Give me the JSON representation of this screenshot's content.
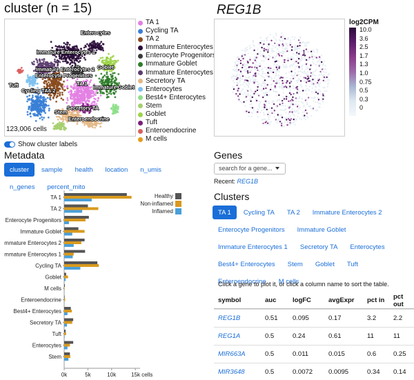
{
  "header": {
    "title": "cluster (n = 15)",
    "gene_title": "REG1B"
  },
  "umap": {
    "cell_count": "123,006 cells",
    "labels": [
      "Enterocytes",
      "Immature Enterocytes 1",
      "Immature Enterocytes 2",
      "Enterocyte Progenitors",
      "Goblet",
      "TA 1",
      "TA 2",
      "Tuft",
      "Cycling TA",
      "Immature Goblet",
      "Stem",
      "Secretory TA",
      "Enteroendocrine"
    ]
  },
  "legend": {
    "items": [
      {
        "label": "TA 1",
        "color": "#e37fe3"
      },
      {
        "label": "Cycling TA",
        "color": "#3a7fd6"
      },
      {
        "label": "TA 2",
        "color": "#8a4b1e"
      },
      {
        "label": "Immature Enterocytes 2",
        "color": "#2b0d3a"
      },
      {
        "label": "Enterocyte Progenitors",
        "color": "#3a3a3a"
      },
      {
        "label": "Immature Goblet",
        "color": "#2f7d2a"
      },
      {
        "label": "Immature Enterocytes 1",
        "color": "#5b3c6e"
      },
      {
        "label": "Secretory TA",
        "color": "#e3b886"
      },
      {
        "label": "Enterocytes",
        "color": "#7ec1ef"
      },
      {
        "label": "Best4+ Enterocytes",
        "color": "#8fe08a"
      },
      {
        "label": "Stem",
        "color": "#a6cf6f"
      },
      {
        "label": "Goblet",
        "color": "#9dd44a"
      },
      {
        "label": "Tuft",
        "color": "#7a1f7a"
      },
      {
        "label": "Enteroendocrine",
        "color": "#d95f5f"
      },
      {
        "label": "M cells",
        "color": "#e69b1a"
      }
    ]
  },
  "colorbar": {
    "title": "log2CPM",
    "ticks": [
      "10.0",
      "3.6",
      "2.5",
      "1.7",
      "1.3",
      "1.0",
      "0.75",
      "0.5",
      "0.3",
      "0"
    ]
  },
  "toggle": {
    "label": "Show cluster labels"
  },
  "metadata": {
    "title": "Metadata",
    "tabs": [
      "cluster",
      "sample",
      "health",
      "location",
      "n_umis",
      "n_genes",
      "percent_mito"
    ],
    "active_tab": "cluster"
  },
  "genes": {
    "title": "Genes",
    "search_placeholder": "search for a gene...",
    "recent_label": "Recent:",
    "recent_gene": "REG1B"
  },
  "clusters": {
    "title": "Clusters",
    "tabs": [
      "TA 1",
      "Cycling TA",
      "TA 2",
      "Immature Enterocytes 2",
      "Enterocyte Progenitors",
      "Immature Goblet",
      "Immature Enterocytes 1",
      "Secretory TA",
      "Enterocytes",
      "Best4+ Enterocytes",
      "Stem",
      "Goblet",
      "Tuft",
      "Enteroendocrine",
      "M cells"
    ],
    "active_tab": "TA 1",
    "hint": "Click a gene to plot it, or click a column name to sort the table."
  },
  "table": {
    "columns": [
      "symbol",
      "auc",
      "logFC",
      "avgExpr",
      "pct in",
      "pct out"
    ],
    "rows": [
      [
        "REG1B",
        "0.51",
        "0.095",
        "0.17",
        "3.2",
        "2.2"
      ],
      [
        "REG1A",
        "0.5",
        "0.24",
        "0.61",
        "11",
        "11"
      ],
      [
        "MIR663A",
        "0.5",
        "0.011",
        "0.015",
        "0.6",
        "0.25"
      ],
      [
        "MIR3648",
        "0.5",
        "0.0072",
        "0.0095",
        "0.34",
        "0.14"
      ]
    ]
  },
  "chart_data": {
    "type": "bar",
    "orientation": "horizontal",
    "categories": [
      "TA 1",
      "TA 2",
      "Enterocyte Progenitors",
      "Immature Goblet",
      "Immature Enterocytes 2",
      "Immature Enterocytes 1",
      "Cycling TA",
      "Goblet",
      "M cells",
      "Enteroendocrine",
      "Best4+ Enterocytes",
      "Secretory TA",
      "Tuft",
      "Enterocytes",
      "Stem"
    ],
    "series": [
      {
        "name": "Healthy",
        "color": "#555555",
        "values": [
          13200,
          5000,
          5200,
          3000,
          4300,
          4400,
          7000,
          400,
          150,
          100,
          1400,
          1900,
          300,
          1900,
          1200
        ]
      },
      {
        "name": "Non-inflamed",
        "color": "#d99a1e",
        "values": [
          14200,
          7200,
          4500,
          4300,
          3600,
          2000,
          7300,
          800,
          100,
          200,
          1600,
          1700,
          400,
          1200,
          1300
        ]
      },
      {
        "name": "Inflamed",
        "color": "#4a9fd9",
        "values": [
          5800,
          3800,
          1000,
          1700,
          2000,
          1800,
          3400,
          300,
          50,
          50,
          700,
          600,
          100,
          700,
          900
        ]
      }
    ],
    "xticks": [
      "0k",
      "5k",
      "10k",
      "15k cells"
    ],
    "xlim": [
      0,
      16000
    ]
  }
}
